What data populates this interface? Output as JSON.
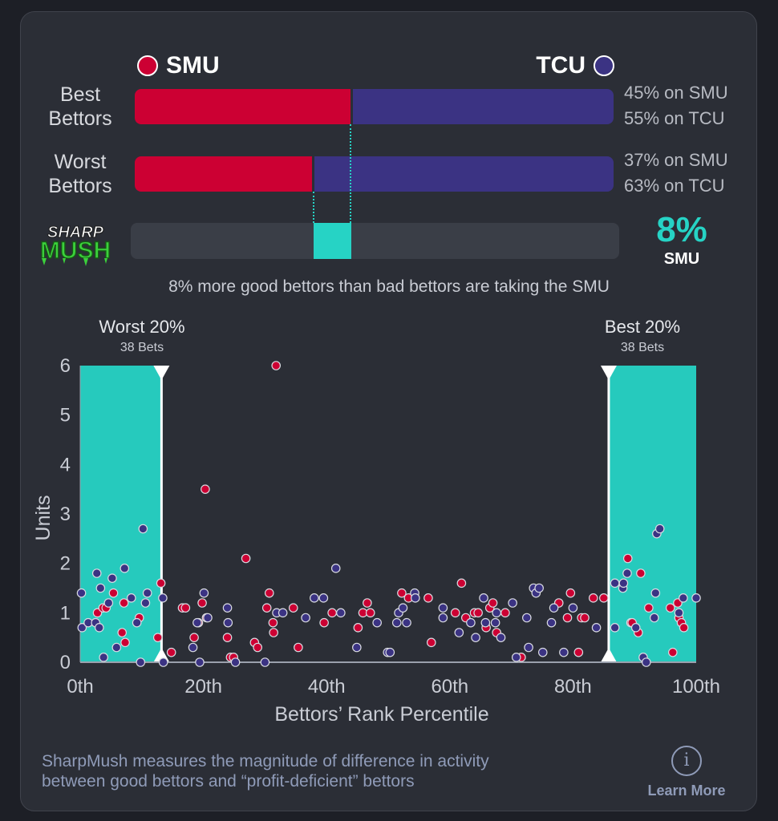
{
  "teams": {
    "left": {
      "name": "SMU",
      "color": "#cc0033"
    },
    "right": {
      "name": "TCU",
      "color": "#3b3383"
    }
  },
  "rows": [
    {
      "label_line1": "Best",
      "label_line2": "Bettors",
      "left_pct": 45,
      "pct_left_text": "45% on SMU",
      "pct_right_text": "55% on TCU"
    },
    {
      "label_line1": "Worst",
      "label_line2": "Bettors",
      "left_pct": 37,
      "pct_left_text": "37% on SMU",
      "pct_right_text": "63% on TCU"
    }
  ],
  "sharp": {
    "logo_top": "SHARP",
    "logo_bottom": "MUSH",
    "value_text": "8%",
    "team_text": "SMU",
    "from_pct": 37,
    "to_pct": 45,
    "accent": "#26d3c5",
    "summary": "8% more good bettors than bad bettors are taking the SMU"
  },
  "bands": {
    "worst": {
      "title": "Worst 20%",
      "sub": "38 Bets"
    },
    "best": {
      "title": "Best 20%",
      "sub": "38 Bets"
    }
  },
  "chart_data": {
    "type": "scatter",
    "xlabel": "Bettors’ Rank Percentile",
    "ylabel": "Units",
    "xlim": [
      0,
      100
    ],
    "ylim": [
      0,
      6
    ],
    "x_ticks": [
      "0th",
      "20th",
      "40th",
      "60th",
      "80th",
      "100th"
    ],
    "y_ticks": [
      "0",
      "1",
      "2",
      "3",
      "4",
      "5",
      "6"
    ],
    "highlight_ranges": [
      [
        0,
        13.2
      ],
      [
        85.8,
        100
      ]
    ],
    "series": [
      {
        "name": "SMU",
        "color": "#cc0033",
        "points": [
          [
            2.8,
            1.0
          ],
          [
            3.7,
            1.1
          ],
          [
            4.2,
            1.1
          ],
          [
            5.4,
            1.4
          ],
          [
            6.8,
            0.6
          ],
          [
            7.1,
            1.2
          ],
          [
            7.3,
            0.4
          ],
          [
            9.6,
            0.9
          ],
          [
            13.1,
            1.6
          ],
          [
            12.6,
            0.5
          ],
          [
            14.8,
            0.2
          ],
          [
            16.6,
            1.1
          ],
          [
            17.1,
            1.1
          ],
          [
            18.5,
            0.5
          ],
          [
            19.2,
            0.8
          ],
          [
            19.8,
            1.2
          ],
          [
            20.3,
            3.5
          ],
          [
            20.5,
            0.9
          ],
          [
            23.9,
            0.5
          ],
          [
            24.4,
            0.1
          ],
          [
            24.9,
            0.1
          ],
          [
            26.9,
            2.1
          ],
          [
            28.3,
            0.4
          ],
          [
            28.8,
            0.3
          ],
          [
            30.3,
            1.1
          ],
          [
            30.7,
            1.4
          ],
          [
            31.3,
            0.8
          ],
          [
            31.4,
            0.6
          ],
          [
            31.8,
            6.0
          ],
          [
            34.6,
            1.1
          ],
          [
            35.4,
            0.3
          ],
          [
            39.6,
            0.8
          ],
          [
            40.9,
            1.0
          ],
          [
            45.1,
            0.7
          ],
          [
            45.9,
            1.0
          ],
          [
            47.1,
            1.0
          ],
          [
            46.6,
            1.2
          ],
          [
            52.2,
            1.4
          ],
          [
            53.3,
            1.3
          ],
          [
            56.5,
            1.3
          ],
          [
            57.0,
            0.4
          ],
          [
            60.9,
            1.0
          ],
          [
            61.9,
            1.6
          ],
          [
            62.6,
            0.9
          ],
          [
            64.0,
            1.0
          ],
          [
            64.6,
            1.0
          ],
          [
            65.9,
            0.7
          ],
          [
            66.5,
            1.1
          ],
          [
            67.0,
            1.2
          ],
          [
            67.6,
            0.6
          ],
          [
            69.0,
            1.0
          ],
          [
            71.6,
            0.1
          ],
          [
            77.7,
            1.2
          ],
          [
            79.1,
            0.9
          ],
          [
            79.6,
            1.4
          ],
          [
            80.9,
            0.2
          ],
          [
            81.4,
            0.9
          ],
          [
            81.9,
            0.9
          ],
          [
            83.3,
            1.3
          ],
          [
            85.0,
            1.3
          ],
          [
            88.9,
            2.1
          ],
          [
            89.4,
            0.8
          ],
          [
            89.6,
            0.8
          ],
          [
            90.6,
            0.6
          ],
          [
            91.0,
            1.8
          ],
          [
            92.3,
            1.1
          ],
          [
            95.8,
            1.1
          ],
          [
            96.2,
            0.2
          ],
          [
            97.0,
            1.2
          ],
          [
            97.2,
            0.9
          ],
          [
            97.6,
            0.8
          ],
          [
            98.0,
            0.7
          ]
        ]
      },
      {
        "name": "TCU",
        "color": "#3b3383",
        "points": [
          [
            0.2,
            1.4
          ],
          [
            0.3,
            0.7
          ],
          [
            1.3,
            0.8
          ],
          [
            2.5,
            0.8
          ],
          [
            2.7,
            1.8
          ],
          [
            3.1,
            0.7
          ],
          [
            3.3,
            1.5
          ],
          [
            3.8,
            0.1
          ],
          [
            4.6,
            1.2
          ],
          [
            5.2,
            1.7
          ],
          [
            5.9,
            0.3
          ],
          [
            7.2,
            1.9
          ],
          [
            8.3,
            1.3
          ],
          [
            9.2,
            0.8
          ],
          [
            9.8,
            0.0
          ],
          [
            10.2,
            2.7
          ],
          [
            10.6,
            1.2
          ],
          [
            10.9,
            1.4
          ],
          [
            13.4,
            1.3
          ],
          [
            13.5,
            0.0
          ],
          [
            18.3,
            0.3
          ],
          [
            19.0,
            0.8
          ],
          [
            19.4,
            0.0
          ],
          [
            20.1,
            1.4
          ],
          [
            20.7,
            0.9
          ],
          [
            23.9,
            1.1
          ],
          [
            24.0,
            0.8
          ],
          [
            25.2,
            0.0
          ],
          [
            30.0,
            0.0
          ],
          [
            31.9,
            1.0
          ],
          [
            32.9,
            1.0
          ],
          [
            36.6,
            0.9
          ],
          [
            38.0,
            1.3
          ],
          [
            39.5,
            1.3
          ],
          [
            41.5,
            1.9
          ],
          [
            42.3,
            1.0
          ],
          [
            44.9,
            0.3
          ],
          [
            48.2,
            0.8
          ],
          [
            49.9,
            0.2
          ],
          [
            50.3,
            0.2
          ],
          [
            51.4,
            0.8
          ],
          [
            51.7,
            1.0
          ],
          [
            52.4,
            1.1
          ],
          [
            53.0,
            0.8
          ],
          [
            54.3,
            1.4
          ],
          [
            54.4,
            1.3
          ],
          [
            58.9,
            1.1
          ],
          [
            58.9,
            0.9
          ],
          [
            61.5,
            0.6
          ],
          [
            63.4,
            0.8
          ],
          [
            64.2,
            0.5
          ],
          [
            65.5,
            1.3
          ],
          [
            65.8,
            0.8
          ],
          [
            67.4,
            0.8
          ],
          [
            67.6,
            1.0
          ],
          [
            68.3,
            0.5
          ],
          [
            70.2,
            1.2
          ],
          [
            70.8,
            0.1
          ],
          [
            72.5,
            0.9
          ],
          [
            72.8,
            0.3
          ],
          [
            73.6,
            1.5
          ],
          [
            74.0,
            1.4
          ],
          [
            74.5,
            1.5
          ],
          [
            75.1,
            0.2
          ],
          [
            76.5,
            0.8
          ],
          [
            76.9,
            1.1
          ],
          [
            78.5,
            0.2
          ],
          [
            80.0,
            1.1
          ],
          [
            83.8,
            0.7
          ],
          [
            86.8,
            0.7
          ],
          [
            86.8,
            1.6
          ],
          [
            88.1,
            1.5
          ],
          [
            88.2,
            1.6
          ],
          [
            88.8,
            1.8
          ],
          [
            90.2,
            0.7
          ],
          [
            91.4,
            0.1
          ],
          [
            91.9,
            0.0
          ],
          [
            93.2,
            0.9
          ],
          [
            93.4,
            1.4
          ],
          [
            93.6,
            2.6
          ],
          [
            94.1,
            2.7
          ],
          [
            97.2,
            1.0
          ],
          [
            97.9,
            1.3
          ],
          [
            100.0,
            1.3
          ]
        ]
      }
    ]
  },
  "footer": {
    "text_line1": "SharpMush measures the magnitude of difference in activity",
    "text_line2": "between good bettors and “profit-deficient” bettors",
    "learn_more": "Learn More",
    "info_glyph": "i"
  }
}
